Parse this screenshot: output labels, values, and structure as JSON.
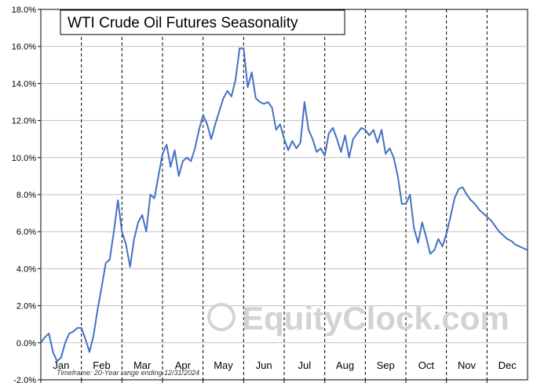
{
  "chart_data": {
    "type": "line",
    "title": "WTI Crude Oil Futures Seasonality",
    "footnote": "Timeframe: 20-Year range ending 12/31/2024",
    "watermark": "EquityClock.com",
    "ylim": [
      -2,
      18
    ],
    "y_ticks": [
      "-2.0%",
      "0.0%",
      "2.0%",
      "4.0%",
      "6.0%",
      "8.0%",
      "10.0%",
      "12.0%",
      "14.0%",
      "16.0%",
      "18.0%"
    ],
    "months": [
      "Jan",
      "Feb",
      "Mar",
      "Apr",
      "May",
      "Jun",
      "Jul",
      "Aug",
      "Sep",
      "Oct",
      "Nov",
      "Dec"
    ],
    "grid": true,
    "line_color": "#4472c4",
    "series": [
      {
        "x": [
          0.0,
          0.1,
          0.2,
          0.3,
          0.4,
          0.5,
          0.6,
          0.7,
          0.8,
          0.9,
          1.0,
          1.1,
          1.2,
          1.3,
          1.4,
          1.5,
          1.6,
          1.7,
          1.8,
          1.9,
          2.0,
          2.1,
          2.2,
          2.3,
          2.4,
          2.5,
          2.6,
          2.7,
          2.8,
          2.9,
          3.0,
          3.1,
          3.2,
          3.3,
          3.4,
          3.5,
          3.6,
          3.7,
          3.8,
          3.9,
          4.0,
          4.1,
          4.2,
          4.3,
          4.4,
          4.5,
          4.6,
          4.7,
          4.8,
          4.9,
          5.0,
          5.1,
          5.2,
          5.3,
          5.4,
          5.5,
          5.6,
          5.7,
          5.8,
          5.9,
          6.0,
          6.1,
          6.2,
          6.3,
          6.4,
          6.5,
          6.6,
          6.7,
          6.8,
          6.9,
          7.0,
          7.1,
          7.2,
          7.3,
          7.4,
          7.5,
          7.6,
          7.7,
          7.8,
          7.9,
          8.0,
          8.1,
          8.2,
          8.3,
          8.4,
          8.5,
          8.6,
          8.7,
          8.8,
          8.9,
          9.0,
          9.1,
          9.2,
          9.3,
          9.4,
          9.5,
          9.6,
          9.7,
          9.8,
          9.9,
          10.0,
          10.1,
          10.2,
          10.3,
          10.4,
          10.5,
          10.6,
          10.7,
          10.8,
          10.9,
          11.0,
          11.1,
          11.2,
          11.3,
          11.4,
          11.5,
          11.6,
          11.7,
          11.8,
          11.9,
          12.0
        ],
        "values": [
          0.0,
          0.3,
          0.5,
          -0.5,
          -1.0,
          -0.8,
          0.0,
          0.5,
          0.6,
          0.8,
          0.8,
          0.2,
          -0.5,
          0.4,
          1.8,
          3.0,
          4.3,
          4.5,
          6.0,
          7.7,
          6.0,
          5.3,
          4.1,
          5.6,
          6.5,
          6.9,
          6.0,
          8.0,
          7.8,
          9.0,
          10.2,
          10.7,
          9.5,
          10.4,
          9.0,
          9.8,
          10.0,
          9.8,
          10.5,
          11.5,
          12.3,
          11.8,
          11.0,
          11.8,
          12.5,
          13.2,
          13.6,
          13.3,
          14.2,
          15.9,
          15.9,
          13.8,
          14.6,
          13.2,
          13.0,
          12.9,
          13.0,
          12.7,
          11.5,
          11.8,
          11.0,
          10.4,
          10.9,
          10.5,
          10.8,
          13.0,
          11.5,
          11.0,
          10.3,
          10.5,
          10.1,
          11.3,
          11.6,
          11.0,
          10.3,
          11.2,
          10.0,
          11.0,
          11.3,
          11.6,
          11.5,
          11.2,
          11.5,
          10.8,
          11.5,
          10.2,
          10.5,
          10.0,
          9.0,
          7.5,
          7.5,
          8.0,
          6.2,
          5.4,
          6.5,
          5.7,
          4.8,
          5.0,
          5.6,
          5.2,
          5.9,
          6.8,
          7.8,
          8.3,
          8.4,
          8.0,
          7.7,
          7.5,
          7.2,
          7.0,
          6.8,
          6.6,
          6.3,
          6.0,
          5.8,
          5.6,
          5.5,
          5.3,
          5.2,
          5.1,
          5.0
        ]
      }
    ]
  }
}
